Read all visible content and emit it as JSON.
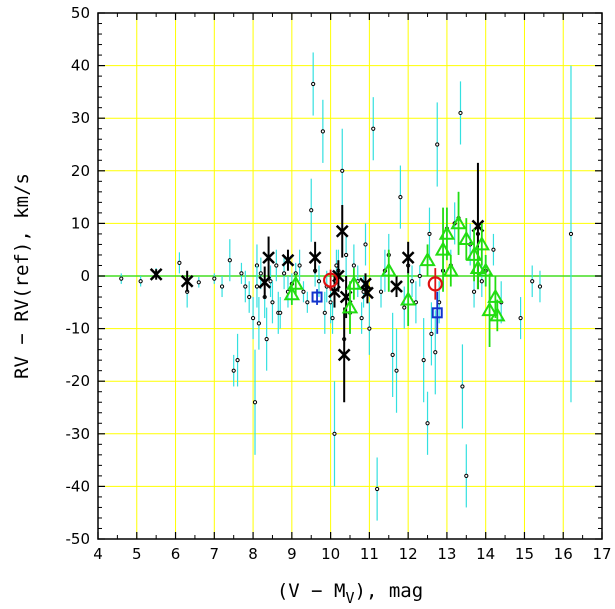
{
  "chart_data": {
    "type": "scatter",
    "title": "",
    "xlabel_main": "(V − M",
    "xlabel_sub": "V",
    "xlabel_tail": "), mag",
    "ylabel": "RV − RV(ref), km/s",
    "xlim": [
      4,
      17
    ],
    "ylim": [
      -50,
      50
    ],
    "x_ticks": [
      4,
      5,
      6,
      7,
      8,
      9,
      10,
      11,
      12,
      13,
      14,
      15,
      16,
      17
    ],
    "y_ticks": [
      -50,
      -40,
      -30,
      -20,
      -10,
      0,
      10,
      20,
      30,
      40,
      50
    ],
    "grid": true,
    "reference_line_y": 0,
    "colors": {
      "grid": "#ffff00",
      "reference_line": "#44dd22",
      "small_points_errors": "#33e0e0",
      "small_points": "#000000",
      "cross_series": "#000000",
      "triangle_series": "#22dd11",
      "circle_series": "#dd1111",
      "square_series": "#1133cc"
    },
    "series": [
      {
        "marker": "small-circle",
        "points": [
          [
            4.6,
            -0.5,
            1
          ],
          [
            5.1,
            -1,
            1
          ],
          [
            5.5,
            0.5,
            1
          ],
          [
            6.1,
            2.5,
            2
          ],
          [
            6.3,
            -3,
            3
          ],
          [
            6.6,
            -1.2,
            1
          ],
          [
            7.0,
            -0.5,
            1
          ],
          [
            7.2,
            -2,
            2
          ],
          [
            7.4,
            3,
            4
          ],
          [
            7.5,
            -18,
            3
          ],
          [
            7.6,
            -16,
            5
          ],
          [
            7.7,
            0.5,
            2
          ],
          [
            7.8,
            -2,
            3
          ],
          [
            7.9,
            -4,
            3
          ],
          [
            8.0,
            -8,
            4
          ],
          [
            8.05,
            -24,
            10
          ],
          [
            8.1,
            2,
            4
          ],
          [
            8.1,
            -2,
            4
          ],
          [
            8.15,
            -9,
            5
          ],
          [
            8.2,
            0.5,
            3
          ],
          [
            8.3,
            -4,
            4
          ],
          [
            8.35,
            -12,
            6
          ],
          [
            8.45,
            -1,
            3
          ],
          [
            8.5,
            -5,
            4
          ],
          [
            8.6,
            2,
            3
          ],
          [
            8.65,
            -7,
            4
          ],
          [
            8.7,
            -7,
            3
          ],
          [
            8.8,
            0.5,
            3
          ],
          [
            8.9,
            -3,
            3
          ],
          [
            9.0,
            -1.5,
            2
          ],
          [
            9.1,
            0.5,
            2
          ],
          [
            9.2,
            2,
            3
          ],
          [
            9.3,
            -3,
            2
          ],
          [
            9.4,
            -5,
            2
          ],
          [
            9.5,
            12.5,
            6
          ],
          [
            9.55,
            36.5,
            6
          ],
          [
            9.6,
            1,
            3
          ],
          [
            9.7,
            -1,
            3
          ],
          [
            9.8,
            27.5,
            6
          ],
          [
            9.85,
            -7,
            4
          ],
          [
            9.9,
            -2,
            3
          ],
          [
            10.0,
            -5,
            4
          ],
          [
            10.05,
            -8,
            3
          ],
          [
            10.1,
            -30,
            10
          ],
          [
            10.15,
            2,
            3
          ],
          [
            10.2,
            1,
            4
          ],
          [
            10.3,
            20,
            8
          ],
          [
            10.35,
            -12,
            6
          ],
          [
            10.4,
            4,
            4
          ],
          [
            10.5,
            -7,
            4
          ],
          [
            10.6,
            2,
            4
          ],
          [
            10.7,
            -1,
            3
          ],
          [
            10.8,
            -8,
            3
          ],
          [
            10.85,
            -3,
            3
          ],
          [
            10.9,
            6,
            4
          ],
          [
            11.0,
            -10,
            5
          ],
          [
            11.1,
            28,
            6
          ],
          [
            11.2,
            -40.5,
            6
          ],
          [
            11.3,
            -3,
            3
          ],
          [
            11.4,
            1,
            4
          ],
          [
            11.5,
            4,
            4
          ],
          [
            11.6,
            -15,
            8
          ],
          [
            11.7,
            -18,
            8
          ],
          [
            11.8,
            15,
            6
          ],
          [
            11.9,
            -6,
            4
          ],
          [
            12.0,
            2,
            3
          ],
          [
            12.1,
            -1,
            3
          ],
          [
            12.2,
            -5,
            4
          ],
          [
            12.3,
            0,
            2
          ],
          [
            12.4,
            -16,
            8
          ],
          [
            12.5,
            -28,
            6
          ],
          [
            12.55,
            8,
            5
          ],
          [
            12.6,
            -11,
            6
          ],
          [
            12.7,
            -14.5,
            8
          ],
          [
            12.75,
            25,
            8
          ],
          [
            12.8,
            -5,
            4
          ],
          [
            12.9,
            1,
            3
          ],
          [
            13.0,
            9,
            4
          ],
          [
            13.1,
            2,
            3
          ],
          [
            13.2,
            10,
            4
          ],
          [
            13.3,
            11,
            5
          ],
          [
            13.35,
            31,
            6
          ],
          [
            13.4,
            -21,
            8
          ],
          [
            13.5,
            -38,
            6
          ],
          [
            13.6,
            6,
            4
          ],
          [
            13.7,
            -3,
            3
          ],
          [
            13.8,
            8,
            4
          ],
          [
            13.9,
            -1,
            3
          ],
          [
            14.0,
            1,
            3
          ],
          [
            14.2,
            5,
            3
          ],
          [
            14.4,
            -5,
            4
          ],
          [
            14.9,
            -8,
            4
          ],
          [
            15.2,
            -1,
            3
          ],
          [
            15.4,
            -2,
            3
          ],
          [
            16.2,
            8,
            32
          ]
        ]
      },
      {
        "marker": "cross",
        "points": [
          [
            5.5,
            0.3,
            1
          ],
          [
            6.3,
            -1,
            2
          ],
          [
            8.3,
            -1.2,
            3
          ],
          [
            8.4,
            3.5,
            4
          ],
          [
            8.9,
            3,
            2
          ],
          [
            9.6,
            3.5,
            3
          ],
          [
            10.1,
            -3,
            3
          ],
          [
            10.2,
            0,
            3
          ],
          [
            10.3,
            8.5,
            5
          ],
          [
            10.35,
            -15,
            9
          ],
          [
            10.4,
            -4,
            4
          ],
          [
            10.9,
            -1.5,
            2
          ],
          [
            10.95,
            -3.2,
            2
          ],
          [
            11.7,
            -2,
            2
          ],
          [
            12.0,
            3.5,
            3
          ],
          [
            13.8,
            9.5,
            12
          ]
        ]
      },
      {
        "marker": "triangle",
        "points": [
          [
            9.0,
            -3.5,
            2
          ],
          [
            9.1,
            -1.5,
            2
          ],
          [
            10.5,
            -6,
            5
          ],
          [
            10.6,
            -1.5,
            3
          ],
          [
            11.5,
            1,
            4
          ],
          [
            12.0,
            -4.5,
            5
          ],
          [
            12.5,
            3,
            3
          ],
          [
            12.9,
            5,
            8
          ],
          [
            13.0,
            8,
            5
          ],
          [
            13.1,
            1,
            3
          ],
          [
            13.3,
            10,
            6
          ],
          [
            13.5,
            7,
            4
          ],
          [
            13.7,
            4,
            5
          ],
          [
            13.8,
            1.5,
            4
          ],
          [
            13.9,
            6,
            4
          ],
          [
            14.0,
            1,
            3
          ],
          [
            14.1,
            -6.5,
            7
          ],
          [
            14.25,
            -4,
            4
          ],
          [
            14.3,
            -7.5,
            3
          ]
        ]
      },
      {
        "marker": "circle",
        "points": [
          [
            10.0,
            -0.8,
            2
          ],
          [
            12.7,
            -1.5,
            3
          ]
        ]
      },
      {
        "marker": "square",
        "points": [
          [
            9.65,
            -4,
            1.5
          ],
          [
            12.75,
            -7,
            4
          ]
        ]
      }
    ]
  }
}
